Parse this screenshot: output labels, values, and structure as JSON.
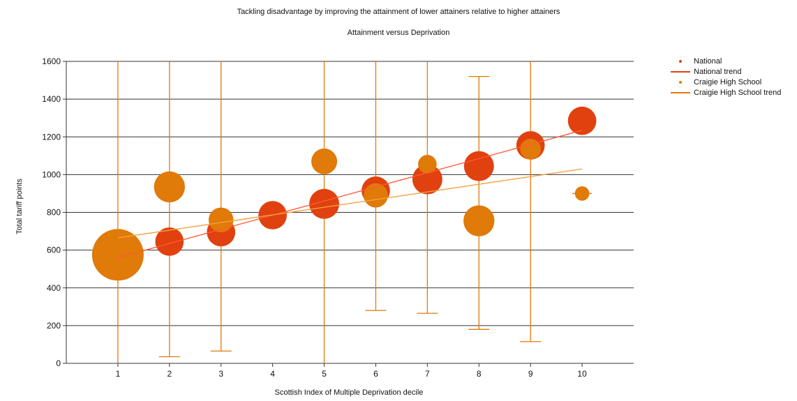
{
  "colors": {
    "national": "#e0410f",
    "school": "#e07a08",
    "grid": "#333333",
    "axis": "#333333"
  },
  "chart_data": {
    "type": "scatter",
    "title": "Tackling disadvantage by improving the attainment of lower attainers relative to higher attainers",
    "subtitle": "Attainment versus Deprivation",
    "xlabel": "Scottish Index of Multiple Deprivation decile",
    "ylabel": "Total tariff points",
    "xlim": [
      0,
      11
    ],
    "ylim": [
      0,
      1600
    ],
    "yticks": [
      0,
      200,
      400,
      600,
      800,
      1000,
      1200,
      1400,
      1600
    ],
    "xticks": [
      1,
      2,
      3,
      4,
      5,
      6,
      7,
      8,
      9,
      10
    ],
    "grid": true,
    "legend_position": "top-right",
    "series": [
      {
        "name": "National",
        "kind": "bubble",
        "points": [
          {
            "x": 2,
            "y": 645,
            "size": 0.55
          },
          {
            "x": 3,
            "y": 695,
            "size": 0.55
          },
          {
            "x": 4,
            "y": 785,
            "size": 0.55
          },
          {
            "x": 5,
            "y": 845,
            "size": 0.58
          },
          {
            "x": 6,
            "y": 915,
            "size": 0.55
          },
          {
            "x": 7,
            "y": 975,
            "size": 0.58
          },
          {
            "x": 8,
            "y": 1045,
            "size": 0.58
          },
          {
            "x": 9,
            "y": 1155,
            "size": 0.55
          },
          {
            "x": 10,
            "y": 1285,
            "size": 0.55
          }
        ]
      },
      {
        "name": "National trend",
        "kind": "trend",
        "from": {
          "x": 1,
          "y": 560
        },
        "to": {
          "x": 10,
          "y": 1235
        }
      },
      {
        "name": "Craigie High School",
        "kind": "bubble",
        "points": [
          {
            "x": 1,
            "y": 575,
            "size": 1.0,
            "err_low": 0,
            "err_high": 1600
          },
          {
            "x": 2,
            "y": 935,
            "size": 0.6,
            "err_low": 35,
            "err_high": 1600
          },
          {
            "x": 3,
            "y": 760,
            "size": 0.48,
            "err_low": 65,
            "err_high": 1600
          },
          {
            "x": 5,
            "y": 1070,
            "size": 0.5,
            "err_low": 0,
            "err_high": 1600
          },
          {
            "x": 6,
            "y": 890,
            "size": 0.47,
            "err_low": 280,
            "err_high": 1600
          },
          {
            "x": 7,
            "y": 1055,
            "size": 0.36,
            "err_low": 265,
            "err_high": 1600
          },
          {
            "x": 8,
            "y": 755,
            "size": 0.6,
            "err_low": 180,
            "err_high": 1520
          },
          {
            "x": 9,
            "y": 1135,
            "size": 0.4,
            "err_low": 115,
            "err_high": 1600
          },
          {
            "x": 10,
            "y": 900,
            "size": 0.28,
            "err_low": 900,
            "err_high": 900,
            "whisker_only": true
          }
        ]
      },
      {
        "name": "Craigie High School trend",
        "kind": "trend",
        "from": {
          "x": 1,
          "y": 665
        },
        "to": {
          "x": 10,
          "y": 1030
        }
      }
    ]
  }
}
